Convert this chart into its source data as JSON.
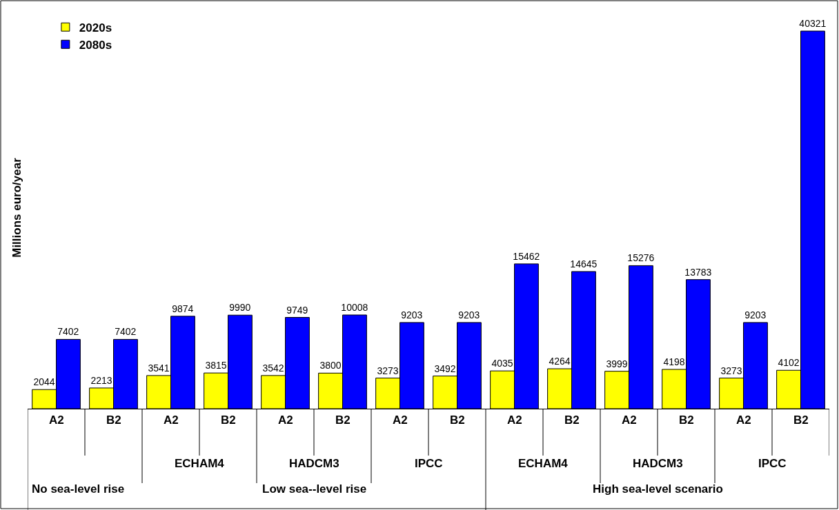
{
  "chart_data": {
    "type": "bar",
    "ylabel": "Millions euro/year",
    "categories": [
      "A2",
      "B2",
      "A2",
      "B2",
      "A2",
      "B2",
      "A2",
      "B2",
      "A2",
      "B2",
      "A2",
      "B2",
      "A2",
      "B2"
    ],
    "series": [
      {
        "name": "2020s",
        "color": "#ffff00",
        "values": [
          2044,
          2213,
          3541,
          3815,
          3542,
          3800,
          3273,
          3492,
          4035,
          4264,
          3999,
          4198,
          3273,
          4102
        ]
      },
      {
        "name": "2080s",
        "color": "#0000ff",
        "values": [
          7402,
          7402,
          9874,
          9990,
          9749,
          10008,
          9203,
          9203,
          15462,
          14645,
          15276,
          13783,
          9203,
          40321
        ]
      }
    ],
    "data_labels": true,
    "legend": "top left",
    "annotations": [
      "ECHAM4",
      "HADCM3",
      "IPCC",
      "ECHAM4",
      "HADCM3",
      "IPCC",
      "No sea-level rise",
      "Low sea--level rise",
      "High sea-level scenario"
    ]
  }
}
